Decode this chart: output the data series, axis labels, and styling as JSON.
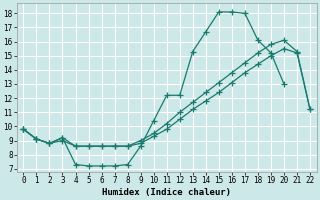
{
  "xlabel": "Humidex (Indice chaleur)",
  "bg_color": "#cde8e8",
  "grid_color": "#ffffff",
  "line_color": "#1a7a6e",
  "xlim": [
    -0.5,
    22.5
  ],
  "ylim": [
    6.8,
    18.7
  ],
  "yticks": [
    7,
    8,
    9,
    10,
    11,
    12,
    13,
    14,
    15,
    16,
    17,
    18
  ],
  "xticks": [
    0,
    1,
    2,
    3,
    4,
    5,
    6,
    7,
    8,
    9,
    10,
    11,
    12,
    13,
    14,
    15,
    16,
    17,
    18,
    19,
    20,
    21,
    22
  ],
  "line1_x": [
    0,
    1,
    2,
    3,
    4,
    5,
    6,
    7,
    8,
    9,
    10,
    11,
    12,
    13,
    14,
    15,
    16,
    17,
    18,
    19,
    20
  ],
  "line1_y": [
    9.8,
    9.1,
    8.8,
    9.2,
    7.3,
    7.2,
    7.2,
    7.2,
    7.3,
    8.6,
    10.4,
    12.2,
    12.2,
    15.3,
    16.7,
    18.1,
    18.1,
    18.0,
    16.1,
    15.2,
    13.0
  ],
  "line2_x": [
    0,
    1,
    2,
    3,
    4,
    5,
    6,
    7,
    8,
    9,
    10,
    11,
    12,
    13,
    14,
    15,
    16,
    17,
    18,
    19,
    20,
    21,
    22
  ],
  "line2_y": [
    9.8,
    9.1,
    8.8,
    9.2,
    8.6,
    8.6,
    8.6,
    8.6,
    8.6,
    9.0,
    9.5,
    10.2,
    11.0,
    11.7,
    12.4,
    13.1,
    13.8,
    14.5,
    15.2,
    15.8,
    16.1,
    15.3,
    11.2
  ],
  "line3_x": [
    0,
    1,
    2,
    3,
    4,
    5,
    6,
    7,
    8,
    9,
    10,
    11,
    12,
    13,
    14,
    15,
    16,
    17,
    18,
    19,
    20,
    21,
    22
  ],
  "line3_y": [
    9.8,
    9.1,
    8.8,
    9.0,
    8.6,
    8.6,
    8.6,
    8.6,
    8.6,
    8.8,
    9.3,
    9.8,
    10.5,
    11.2,
    11.8,
    12.4,
    13.1,
    13.8,
    14.4,
    15.0,
    15.5,
    15.2,
    11.2
  ]
}
